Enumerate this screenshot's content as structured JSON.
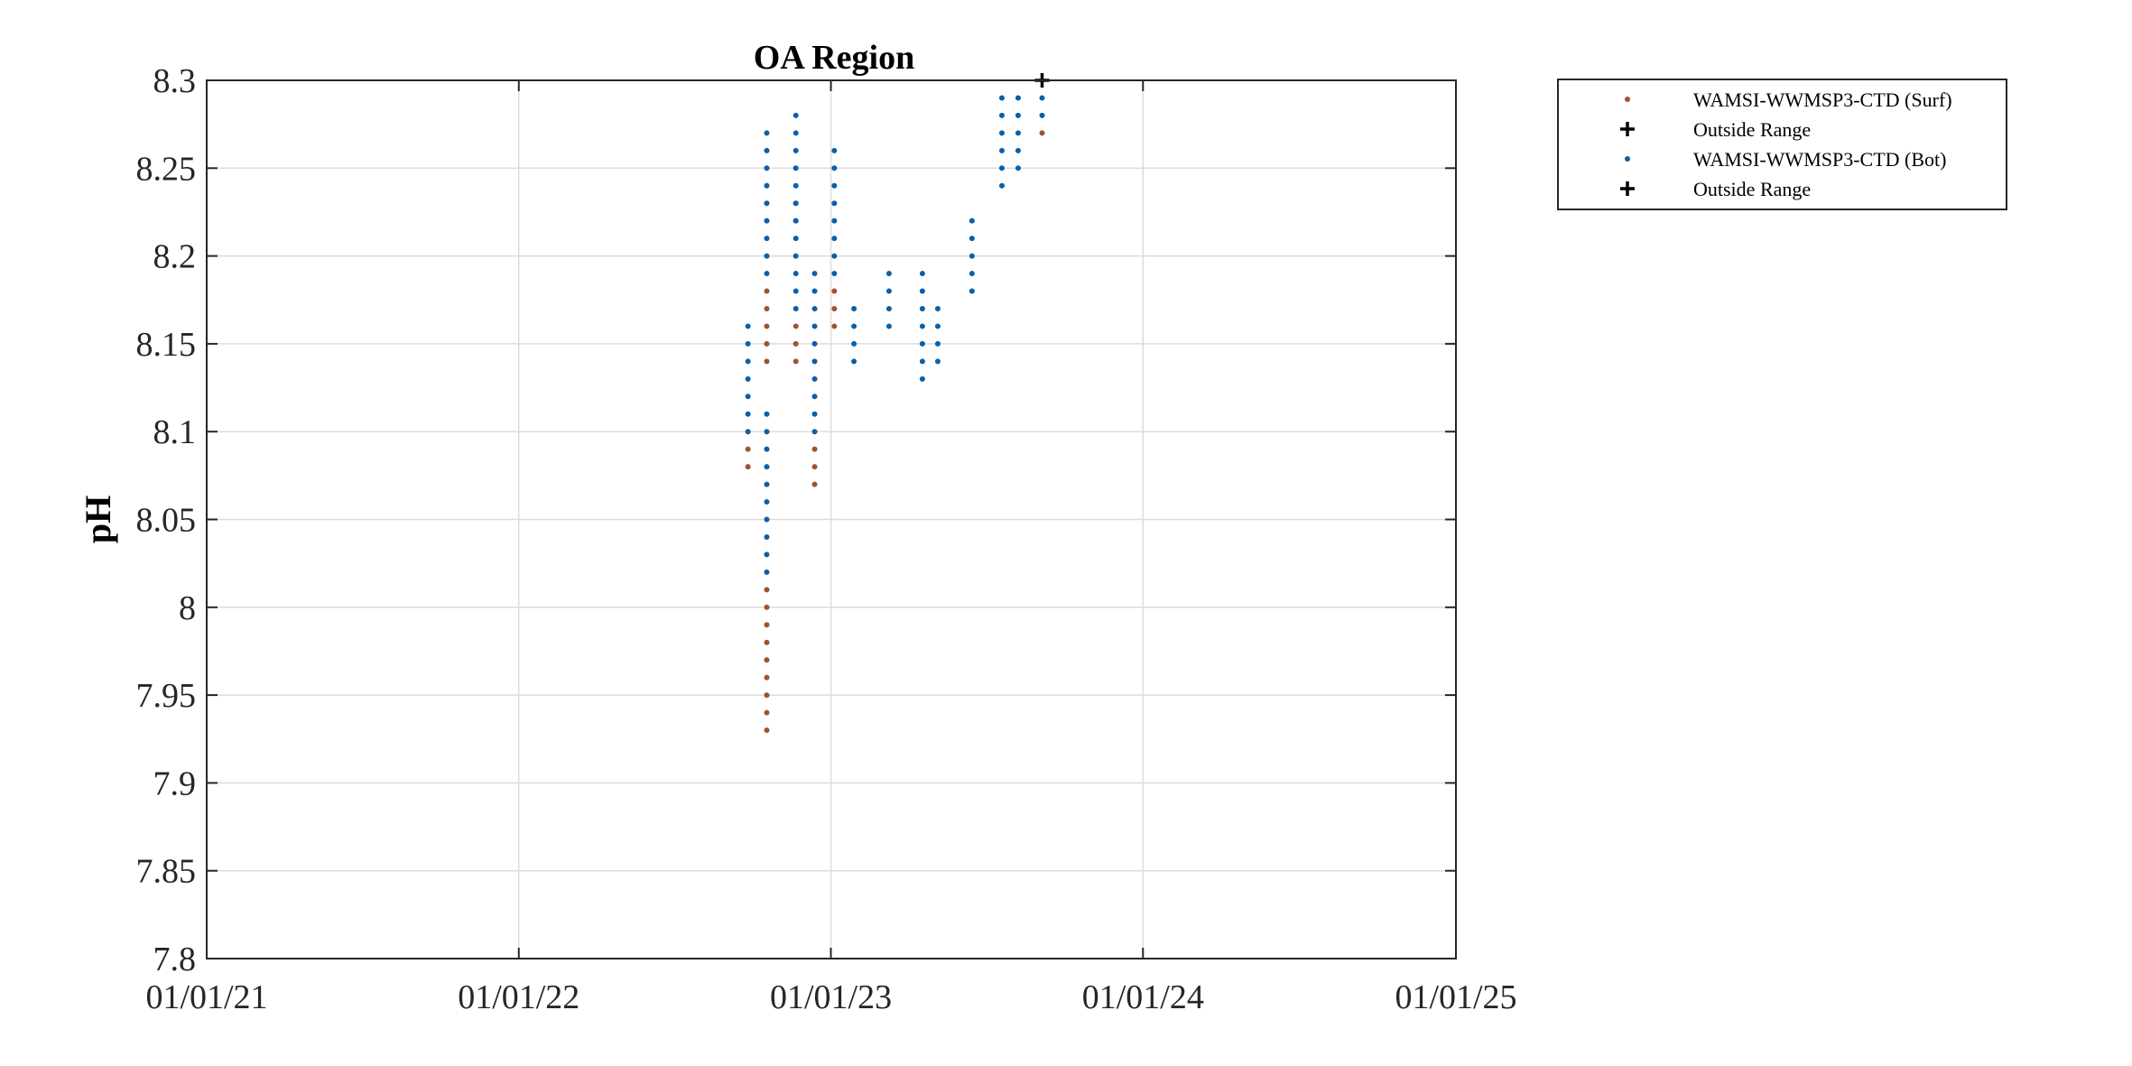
{
  "chart_data": {
    "type": "scatter",
    "title": "OA Region",
    "xlabel": "",
    "ylabel": "pH",
    "x_type": "date",
    "xlim": [
      "2021-01-01",
      "2025-01-01"
    ],
    "ylim": [
      7.8,
      8.3
    ],
    "xticks": [
      "01/01/21",
      "01/01/22",
      "01/01/23",
      "01/01/24",
      "01/01/25"
    ],
    "yticks": [
      "7.8",
      "7.85",
      "7.9",
      "7.95",
      "8",
      "8.05",
      "8.1",
      "8.15",
      "8.2",
      "8.25",
      "8.3"
    ],
    "grid": true,
    "legend_position": "outside-top-right",
    "colors": {
      "surf": "#A0522D",
      "bot": "#0A5FA8",
      "outside": "#000000"
    },
    "series": [
      {
        "name": "WAMSI-WWMSP3-CTD (Surf)",
        "marker": "dot",
        "color": "#A0522D",
        "points": [
          {
            "x": "2022-09-26",
            "y_min": 8.08,
            "y_max": 8.09
          },
          {
            "x": "2022-10-18",
            "y_min": 7.93,
            "y_max": 8.01
          },
          {
            "x": "2022-10-18",
            "y_min": 8.14,
            "y_max": 8.18
          },
          {
            "x": "2022-11-21",
            "y_min": 8.14,
            "y_max": 8.16
          },
          {
            "x": "2022-11-21",
            "y_min": 8.22,
            "y_max": 8.23
          },
          {
            "x": "2022-12-13",
            "y_min": 8.07,
            "y_max": 8.09
          },
          {
            "x": "2023-01-05",
            "y_min": 8.16,
            "y_max": 8.18
          },
          {
            "x": "2023-09-05",
            "y_min": 8.27,
            "y_max": 8.27
          }
        ]
      },
      {
        "name": "Outside Range",
        "marker": "plus",
        "color": "#000000",
        "points": []
      },
      {
        "name": "WAMSI-WWMSP3-CTD (Bot)",
        "marker": "dot",
        "color": "#0A5FA8",
        "points": [
          {
            "x": "2022-09-26",
            "y_min": 8.1,
            "y_max": 8.16
          },
          {
            "x": "2022-10-18",
            "y_min": 8.02,
            "y_max": 8.11
          },
          {
            "x": "2022-10-18",
            "y_min": 8.19,
            "y_max": 8.27
          },
          {
            "x": "2022-11-21",
            "y_min": 8.17,
            "y_max": 8.28
          },
          {
            "x": "2022-12-13",
            "y_min": 8.1,
            "y_max": 8.19
          },
          {
            "x": "2023-01-05",
            "y_min": 8.19,
            "y_max": 8.26
          },
          {
            "x": "2023-01-28",
            "y_min": 8.14,
            "y_max": 8.17
          },
          {
            "x": "2023-03-10",
            "y_min": 8.16,
            "y_max": 8.19
          },
          {
            "x": "2023-04-18",
            "y_min": 8.13,
            "y_max": 8.19
          },
          {
            "x": "2023-05-06",
            "y_min": 8.14,
            "y_max": 8.17
          },
          {
            "x": "2023-06-15",
            "y_min": 8.18,
            "y_max": 8.22
          },
          {
            "x": "2023-07-20",
            "y_min": 8.24,
            "y_max": 8.29
          },
          {
            "x": "2023-08-08",
            "y_min": 8.25,
            "y_max": 8.29
          },
          {
            "x": "2023-09-05",
            "y_min": 8.28,
            "y_max": 8.29
          }
        ]
      },
      {
        "name": "Outside Range",
        "marker": "plus",
        "color": "#000000",
        "points": [
          {
            "x": "2023-09-05",
            "y_min": 8.3,
            "y_max": 8.3
          }
        ]
      }
    ]
  }
}
